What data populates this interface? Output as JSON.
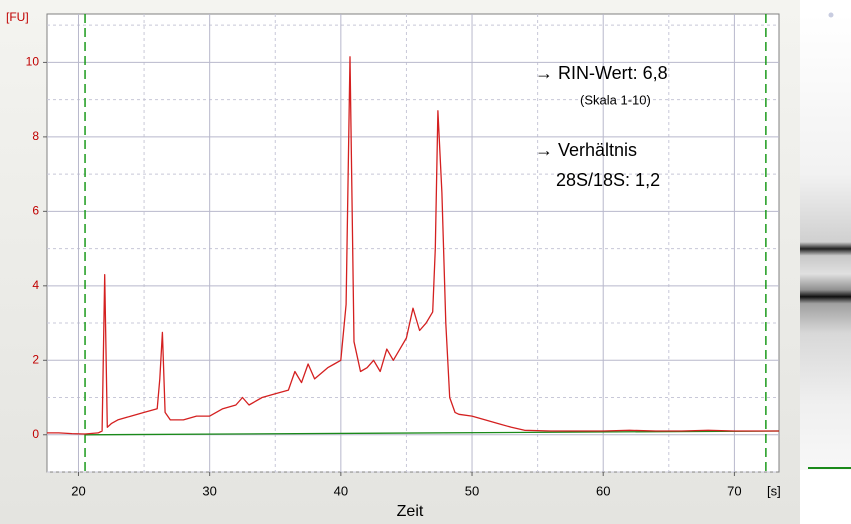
{
  "chart_data": {
    "type": "line",
    "y_unit": "[FU]",
    "x_unit": "[s]",
    "x_label": "Zeit",
    "annotations": [
      "→ RIN-Wert: 6,8",
      "(Skala 1-10)",
      "→ Verhältnis",
      "28S/18S: 1,2"
    ],
    "x": [
      17.6,
      18.5,
      19.5,
      20.5,
      21.5,
      21.8,
      22.0,
      22.2,
      22.5,
      23,
      24,
      25,
      26,
      26.2,
      26.4,
      26.6,
      27,
      28,
      29,
      30,
      31,
      32,
      32.5,
      33,
      34,
      35,
      36,
      36.5,
      37,
      37.5,
      38,
      39,
      39.5,
      40,
      40.4,
      40.7,
      41.0,
      41.5,
      42,
      42.5,
      43,
      43.5,
      44,
      44.5,
      45,
      45.5,
      46,
      46.5,
      47,
      47.2,
      47.4,
      47.7,
      48,
      48.3,
      48.7,
      49,
      50,
      51,
      52,
      53,
      54,
      56,
      58,
      60,
      62,
      64,
      66,
      68,
      70,
      72,
      73.4
    ],
    "series": [
      {
        "color": "#d42020",
        "values": [
          0.05,
          0.05,
          0.03,
          0.02,
          0.05,
          0.1,
          4.3,
          0.2,
          0.3,
          0.4,
          0.5,
          0.6,
          0.7,
          1.5,
          2.75,
          0.6,
          0.4,
          0.4,
          0.5,
          0.5,
          0.7,
          0.8,
          1.0,
          0.8,
          1.0,
          1.1,
          1.2,
          1.7,
          1.4,
          1.9,
          1.5,
          1.8,
          1.9,
          2.0,
          3.5,
          10.15,
          2.5,
          1.7,
          1.8,
          2.0,
          1.7,
          2.3,
          2.0,
          2.3,
          2.6,
          3.4,
          2.8,
          3.0,
          3.3,
          5.0,
          8.7,
          6.5,
          3.0,
          1.0,
          0.6,
          0.55,
          0.5,
          0.4,
          0.3,
          0.2,
          0.12,
          0.1,
          0.1,
          0.1,
          0.12,
          0.1,
          0.1,
          0.12,
          0.1,
          0.1,
          0.1
        ]
      }
    ],
    "baseline": {
      "color": "#1a8a1a",
      "x": [
        20.5,
        73.4
      ],
      "values": [
        0,
        0.1
      ]
    },
    "markers": [
      20.5,
      72.4
    ],
    "marker_color": "#1a9a1a",
    "xlim": [
      17.6,
      73.4
    ],
    "ylim": [
      -1,
      11.3
    ],
    "xticks": [
      20,
      30,
      40,
      50,
      60,
      70
    ],
    "yticks": [
      0,
      2,
      4,
      6,
      8,
      10
    ],
    "xminor": [
      25,
      35,
      45,
      55,
      65
    ],
    "yminor": [
      -1,
      1,
      3,
      5,
      7,
      9,
      11
    ],
    "grid": true
  }
}
